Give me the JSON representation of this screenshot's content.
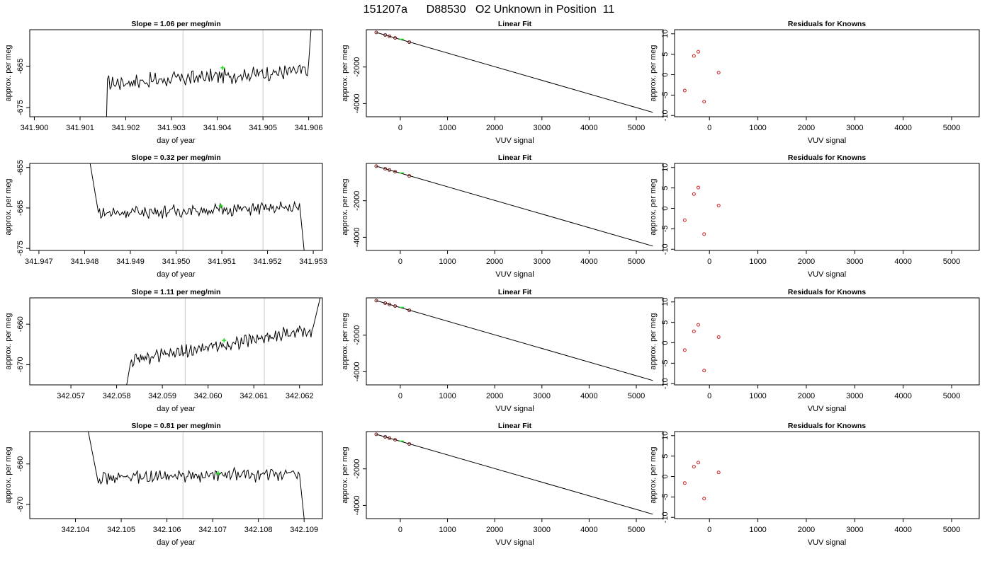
{
  "title": "151207a      D88530   O2 Unknown in Position  11",
  "colors": {
    "trace": "#000000",
    "marker": "#22dd22",
    "vline": "#c8c8c8",
    "known": "#cc2222",
    "fit": "#000000"
  },
  "chart_data": [
    {
      "type": "line",
      "row": 0,
      "panel": "time",
      "title": "Slope =  1.06  per meg/min",
      "xlabel": "day of year",
      "ylabel": "approx. per meg",
      "xlim": [
        341.8999,
        341.9063
      ],
      "ylim": [
        -677.2,
        -656.2
      ],
      "xticks": [
        341.9,
        341.901,
        341.902,
        341.903,
        341.904,
        341.905,
        341.906
      ],
      "xtick_labels": [
        "341.900",
        "341.901",
        "341.902",
        "341.903",
        "341.904",
        "341.905",
        "341.906"
      ],
      "yticks": [
        -675,
        -665
      ],
      "ytick_labels": [
        "-675",
        "-665"
      ],
      "vlines": [
        341.90325,
        341.905
      ],
      "trace_start": [
        341.90158,
        -677.2
      ],
      "trace_end": [
        341.90605,
        -656.2
      ],
      "x0": 341.9016,
      "x1": 341.906,
      "level": -667.6,
      "slope": 3.1,
      "noise": 1.4,
      "marker": [
        341.90412,
        -665.4
      ]
    },
    {
      "type": "line",
      "row": 0,
      "panel": "fit",
      "title": "Linear Fit",
      "xlabel": "VUV signal",
      "ylabel": "approx. per meg",
      "xlim": [
        -720,
        5570
      ],
      "ylim": [
        -4720,
        40
      ],
      "xticks": [
        0,
        1000,
        2000,
        3000,
        4000,
        5000
      ],
      "xtick_labels": [
        "0",
        "1000",
        "2000",
        "3000",
        "4000",
        "5000"
      ],
      "yticks": [
        -4000,
        -2000
      ],
      "ytick_labels": [
        "-4000",
        "-2000"
      ],
      "fit_line": [
        [
          -510,
          -110
        ],
        [
          5350,
          -4480
        ]
      ],
      "knowns": [
        [
          -510,
          -110
        ],
        [
          -320,
          -250
        ],
        [
          -230,
          -320
        ],
        [
          -110,
          -410
        ],
        [
          190,
          -640
        ]
      ],
      "unknown": [
        30,
        -480
      ]
    },
    {
      "type": "scatter",
      "row": 0,
      "panel": "resid",
      "title": "Residuals for Knowns",
      "xlabel": "VUV signal",
      "ylabel": "approx. per meg",
      "xlim": [
        -720,
        5570
      ],
      "ylim": [
        -10.3,
        11.0
      ],
      "xticks": [
        0,
        1000,
        2000,
        3000,
        4000,
        5000
      ],
      "xtick_labels": [
        "0",
        "1000",
        "2000",
        "3000",
        "4000",
        "5000"
      ],
      "yticks": [
        -10,
        -5,
        0,
        5,
        10
      ],
      "ytick_labels": [
        "-10",
        "-5",
        "0",
        "5",
        "10"
      ],
      "points": [
        [
          -510,
          -3.9
        ],
        [
          -320,
          4.6
        ],
        [
          -230,
          5.6
        ],
        [
          -110,
          -6.6
        ],
        [
          190,
          0.5
        ]
      ]
    },
    {
      "type": "line",
      "row": 1,
      "panel": "time",
      "title": "Slope =  0.32  per meg/min",
      "xlabel": "day of year",
      "ylabel": "approx. per meg",
      "xlim": [
        341.9468,
        341.9532
      ],
      "ylim": [
        -675.5,
        -654.0
      ],
      "xticks": [
        341.947,
        341.948,
        341.949,
        341.95,
        341.951,
        341.952,
        341.953
      ],
      "xtick_labels": [
        "341.947",
        "341.948",
        "341.949",
        "341.950",
        "341.951",
        "341.952",
        "341.953"
      ],
      "yticks": [
        -675,
        -665,
        -655
      ],
      "ytick_labels": [
        "-675",
        "-665",
        "-655"
      ],
      "vlines": [
        341.95015,
        341.9519
      ],
      "trace_start": [
        341.94812,
        -654.0
      ],
      "trace_end": [
        341.9528,
        -675.5
      ],
      "x0": 341.9483,
      "x1": 341.9527,
      "level": -665.6,
      "slope": 1.4,
      "noise": 1.2,
      "marker": [
        341.95098,
        -664.5
      ]
    },
    {
      "type": "line",
      "row": 1,
      "panel": "fit",
      "title": "Linear Fit",
      "xlabel": "VUV signal",
      "ylabel": "approx. per meg",
      "xlim": [
        -720,
        5570
      ],
      "ylim": [
        -4720,
        40
      ],
      "xticks": [
        0,
        1000,
        2000,
        3000,
        4000,
        5000
      ],
      "xtick_labels": [
        "0",
        "1000",
        "2000",
        "3000",
        "4000",
        "5000"
      ],
      "yticks": [
        -4000,
        -2000
      ],
      "ytick_labels": [
        "-4000",
        "-2000"
      ],
      "fit_line": [
        [
          -510,
          -110
        ],
        [
          5350,
          -4480
        ]
      ],
      "knowns": [
        [
          -510,
          -110
        ],
        [
          -320,
          -250
        ],
        [
          -230,
          -320
        ],
        [
          -110,
          -410
        ],
        [
          190,
          -640
        ]
      ],
      "unknown": [
        30,
        -480
      ]
    },
    {
      "type": "scatter",
      "row": 1,
      "panel": "resid",
      "title": "Residuals for Knowns",
      "xlabel": "VUV signal",
      "ylabel": "approx. per meg",
      "xlim": [
        -720,
        5570
      ],
      "ylim": [
        -10.3,
        11.0
      ],
      "xticks": [
        0,
        1000,
        2000,
        3000,
        4000,
        5000
      ],
      "xtick_labels": [
        "0",
        "1000",
        "2000",
        "3000",
        "4000",
        "5000"
      ],
      "yticks": [
        -10,
        -5,
        0,
        5,
        10
      ],
      "ytick_labels": [
        "-10",
        "-5",
        "0",
        "5",
        "10"
      ],
      "points": [
        [
          -510,
          -2.9
        ],
        [
          -320,
          3.5
        ],
        [
          -230,
          5.1
        ],
        [
          -110,
          -6.3
        ],
        [
          190,
          0.7
        ]
      ]
    },
    {
      "type": "line",
      "row": 2,
      "panel": "time",
      "title": "Slope =  1.11  per meg/min",
      "xlabel": "day of year",
      "ylabel": "approx. per meg",
      "xlim": [
        342.0561,
        342.0625
      ],
      "ylim": [
        -675.0,
        -653.5
      ],
      "xticks": [
        342.057,
        342.058,
        342.059,
        342.06,
        342.061,
        342.062
      ],
      "xtick_labels": [
        "342.057",
        "342.058",
        "342.059",
        "342.060",
        "342.061",
        "342.062"
      ],
      "yticks": [
        -670,
        -660
      ],
      "ytick_labels": [
        "-670",
        "-660"
      ],
      "vlines": [
        342.0595,
        342.06123
      ],
      "trace_start": [
        342.05822,
        -675.0
      ],
      "trace_end": [
        342.06245,
        -653.5
      ],
      "x0": 342.0583,
      "x1": 342.0623,
      "level": -665.2,
      "slope": 8.0,
      "noise": 1.3,
      "marker": [
        342.06035,
        -664.0
      ]
    },
    {
      "type": "line",
      "row": 2,
      "panel": "fit",
      "title": "Linear Fit",
      "xlabel": "VUV signal",
      "ylabel": "approx. per meg",
      "xlim": [
        -720,
        5570
      ],
      "ylim": [
        -4720,
        40
      ],
      "xticks": [
        0,
        1000,
        2000,
        3000,
        4000,
        5000
      ],
      "xtick_labels": [
        "0",
        "1000",
        "2000",
        "3000",
        "4000",
        "5000"
      ],
      "yticks": [
        -4000,
        -2000
      ],
      "ytick_labels": [
        "-4000",
        "-2000"
      ],
      "fit_line": [
        [
          -510,
          -110
        ],
        [
          5350,
          -4480
        ]
      ],
      "knowns": [
        [
          -510,
          -110
        ],
        [
          -320,
          -250
        ],
        [
          -230,
          -320
        ],
        [
          -110,
          -410
        ],
        [
          190,
          -640
        ]
      ],
      "unknown": [
        30,
        -480
      ]
    },
    {
      "type": "scatter",
      "row": 2,
      "panel": "resid",
      "title": "Residuals for Knowns",
      "xlabel": "VUV signal",
      "ylabel": "approx. per meg",
      "xlim": [
        -720,
        5570
      ],
      "ylim": [
        -10.3,
        11.0
      ],
      "xticks": [
        0,
        1000,
        2000,
        3000,
        4000,
        5000
      ],
      "xtick_labels": [
        "0",
        "1000",
        "2000",
        "3000",
        "4000",
        "5000"
      ],
      "yticks": [
        -10,
        -5,
        0,
        5,
        10
      ],
      "ytick_labels": [
        "-10",
        "-5",
        "0",
        "5",
        "10"
      ],
      "points": [
        [
          -510,
          -1.8
        ],
        [
          -320,
          2.8
        ],
        [
          -230,
          4.4
        ],
        [
          -110,
          -6.8
        ],
        [
          190,
          1.4
        ]
      ]
    },
    {
      "type": "line",
      "row": 3,
      "panel": "time",
      "title": "Slope =  0.81  per meg/min",
      "xlabel": "day of year",
      "ylabel": "approx. per meg",
      "xlim": [
        342.103,
        342.1094
      ],
      "ylim": [
        -673.5,
        -652.0
      ],
      "xticks": [
        342.104,
        342.105,
        342.106,
        342.107,
        342.108,
        342.109
      ],
      "xtick_labels": [
        "342.104",
        "342.105",
        "342.106",
        "342.107",
        "342.108",
        "342.109"
      ],
      "yticks": [
        -670,
        -660
      ],
      "ytick_labels": [
        "-670",
        "-660"
      ],
      "vlines": [
        342.10635,
        342.10812
      ],
      "trace_start": [
        342.10428,
        -652.0
      ],
      "trace_end": [
        342.109,
        -673.5
      ],
      "x0": 342.1045,
      "x1": 342.1089,
      "level": -663.0,
      "slope": 1.0,
      "noise": 1.3,
      "marker": [
        342.10712,
        -662.3
      ]
    },
    {
      "type": "line",
      "row": 3,
      "panel": "fit",
      "title": "Linear Fit",
      "xlabel": "VUV signal",
      "ylabel": "approx. per meg",
      "xlim": [
        -720,
        5570
      ],
      "ylim": [
        -4720,
        40
      ],
      "xticks": [
        0,
        1000,
        2000,
        3000,
        4000,
        5000
      ],
      "xtick_labels": [
        "0",
        "1000",
        "2000",
        "3000",
        "4000",
        "5000"
      ],
      "yticks": [
        -4000,
        -2000
      ],
      "ytick_labels": [
        "-4000",
        "-2000"
      ],
      "fit_line": [
        [
          -510,
          -110
        ],
        [
          5350,
          -4480
        ]
      ],
      "knowns": [
        [
          -510,
          -110
        ],
        [
          -320,
          -250
        ],
        [
          -230,
          -320
        ],
        [
          -110,
          -410
        ],
        [
          190,
          -640
        ]
      ],
      "unknown": [
        30,
        -480
      ]
    },
    {
      "type": "scatter",
      "row": 3,
      "panel": "resid",
      "title": "Residuals for Knowns",
      "xlabel": "VUV signal",
      "ylabel": "approx. per meg",
      "xlim": [
        -720,
        5570
      ],
      "ylim": [
        -10.3,
        11.0
      ],
      "xticks": [
        0,
        1000,
        2000,
        3000,
        4000,
        5000
      ],
      "xtick_labels": [
        "0",
        "1000",
        "2000",
        "3000",
        "4000",
        "5000"
      ],
      "yticks": [
        -10,
        -5,
        0,
        5,
        10
      ],
      "ytick_labels": [
        "-10",
        "-5",
        "0",
        "5",
        "10"
      ],
      "points": [
        [
          -510,
          -1.6
        ],
        [
          -320,
          2.4
        ],
        [
          -230,
          3.4
        ],
        [
          -110,
          -5.4
        ],
        [
          190,
          1.0
        ]
      ]
    }
  ]
}
